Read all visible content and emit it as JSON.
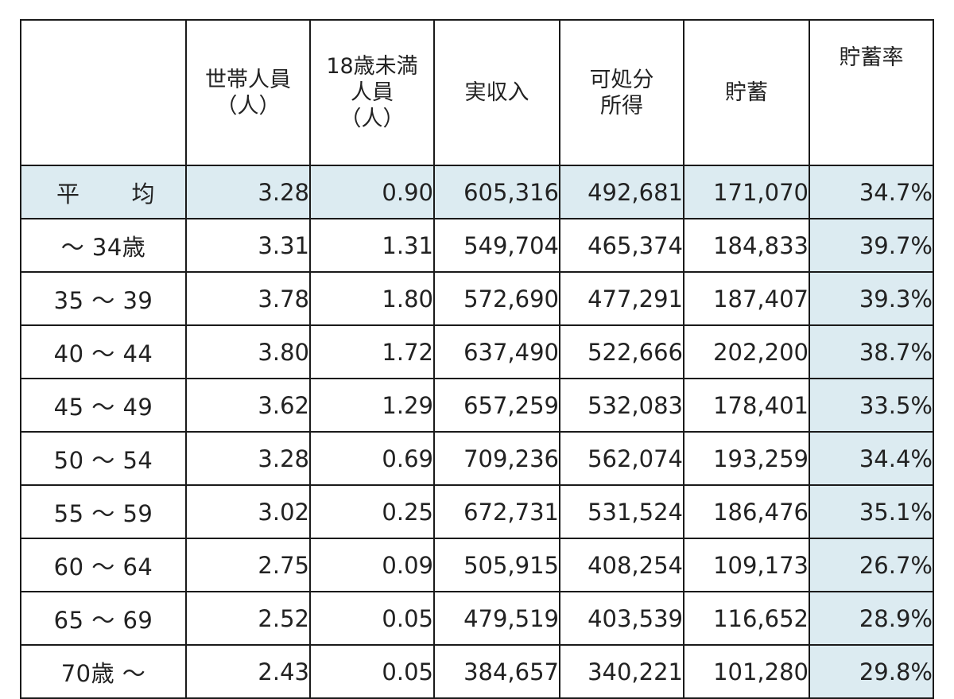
{
  "table": {
    "headers": [
      {
        "key": "corner",
        "lines": []
      },
      {
        "key": "household_members",
        "lines": [
          "世帯人員",
          "（人）"
        ]
      },
      {
        "key": "under18",
        "lines": [
          "18歳未満",
          "人員",
          "（人）"
        ]
      },
      {
        "key": "actual_income",
        "lines": [
          "実収入"
        ]
      },
      {
        "key": "disposable_income",
        "lines": [
          "可処分",
          "所得"
        ]
      },
      {
        "key": "savings",
        "lines": [
          "貯蓄"
        ]
      },
      {
        "key": "savings_rate",
        "lines": [
          "貯蓄率"
        ]
      }
    ],
    "rows": [
      {
        "label": "平　均",
        "label_parts": [
          "平",
          "均"
        ],
        "cells": [
          "3.28",
          "0.90",
          "605,316",
          "492,681",
          "171,070",
          "34.7%"
        ]
      },
      {
        "label": "～ 34歳",
        "cells": [
          "3.31",
          "1.31",
          "549,704",
          "465,374",
          "184,833",
          "39.7%"
        ]
      },
      {
        "label": "35 ～ 39",
        "cells": [
          "3.78",
          "1.80",
          "572,690",
          "477,291",
          "187,407",
          "39.3%"
        ]
      },
      {
        "label": "40 ～ 44",
        "cells": [
          "3.80",
          "1.72",
          "637,490",
          "522,666",
          "202,200",
          "38.7%"
        ]
      },
      {
        "label": "45 ～ 49",
        "cells": [
          "3.62",
          "1.29",
          "657,259",
          "532,083",
          "178,401",
          "33.5%"
        ]
      },
      {
        "label": "50 ～ 54",
        "cells": [
          "3.28",
          "0.69",
          "709,236",
          "562,074",
          "193,259",
          "34.4%"
        ]
      },
      {
        "label": "55 ～ 59",
        "cells": [
          "3.02",
          "0.25",
          "672,731",
          "531,524",
          "186,476",
          "35.1%"
        ]
      },
      {
        "label": "60 ～ 64",
        "cells": [
          "2.75",
          "0.09",
          "505,915",
          "408,254",
          "109,173",
          "26.7%"
        ]
      },
      {
        "label": "65 ～ 69",
        "cells": [
          "2.52",
          "0.05",
          "479,519",
          "403,539",
          "116,652",
          "28.9%"
        ]
      },
      {
        "label": "70歳 ～",
        "cells": [
          "2.43",
          "0.05",
          "384,657",
          "340,221",
          "101,280",
          "29.8%"
        ]
      }
    ]
  },
  "colors": {
    "highlight": "#dcebf1",
    "border": "#1a1a1a"
  }
}
